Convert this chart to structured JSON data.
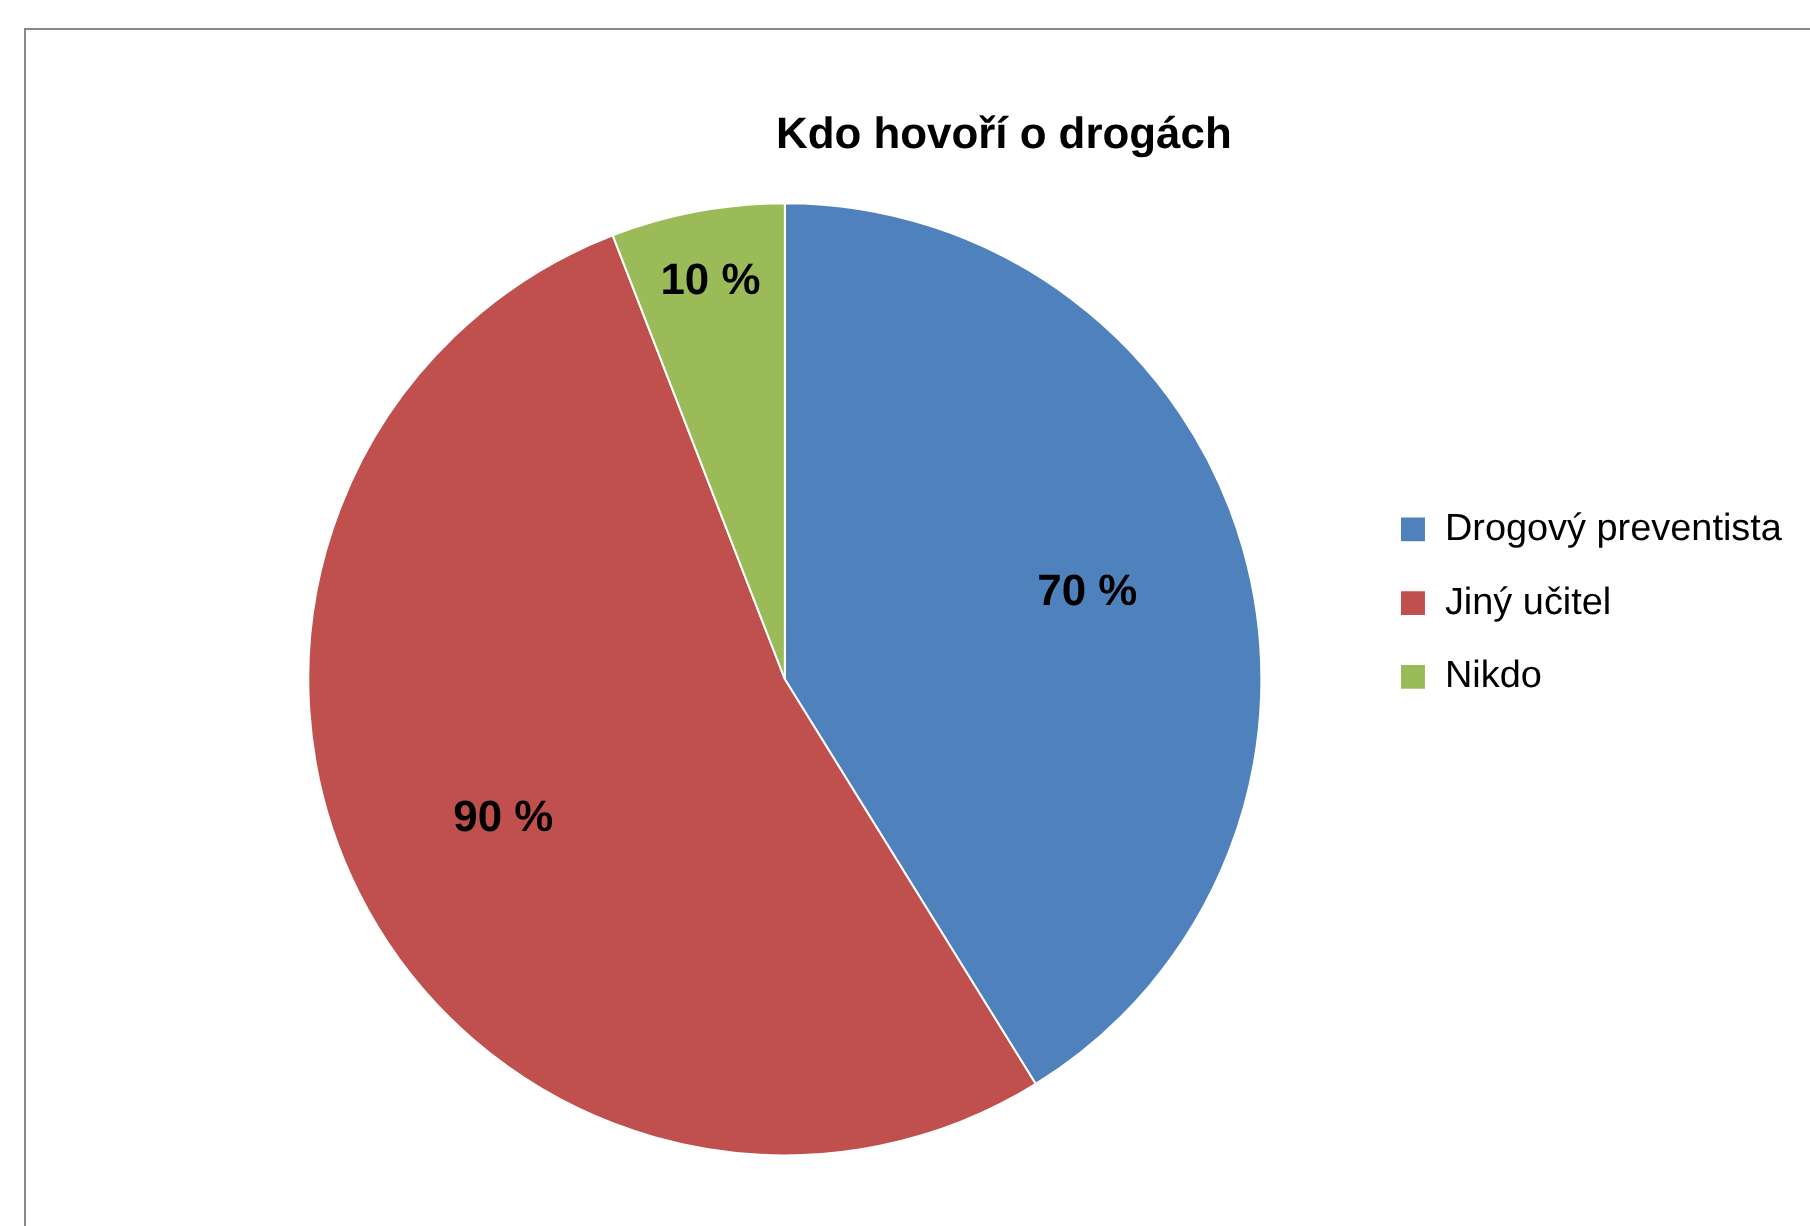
{
  "chart_data": {
    "type": "pie",
    "title": "Kdo hovoří o drogách",
    "categories": [
      "Drogový preventista",
      "Jiný učitel",
      "Nikdo"
    ],
    "values": [
      70,
      90,
      10
    ],
    "colors": [
      "#4f81bd",
      "#c0504d",
      "#9bbb59"
    ],
    "value_labels": [
      "70 %",
      "90 %",
      "10 %"
    ],
    "legend": "right"
  }
}
